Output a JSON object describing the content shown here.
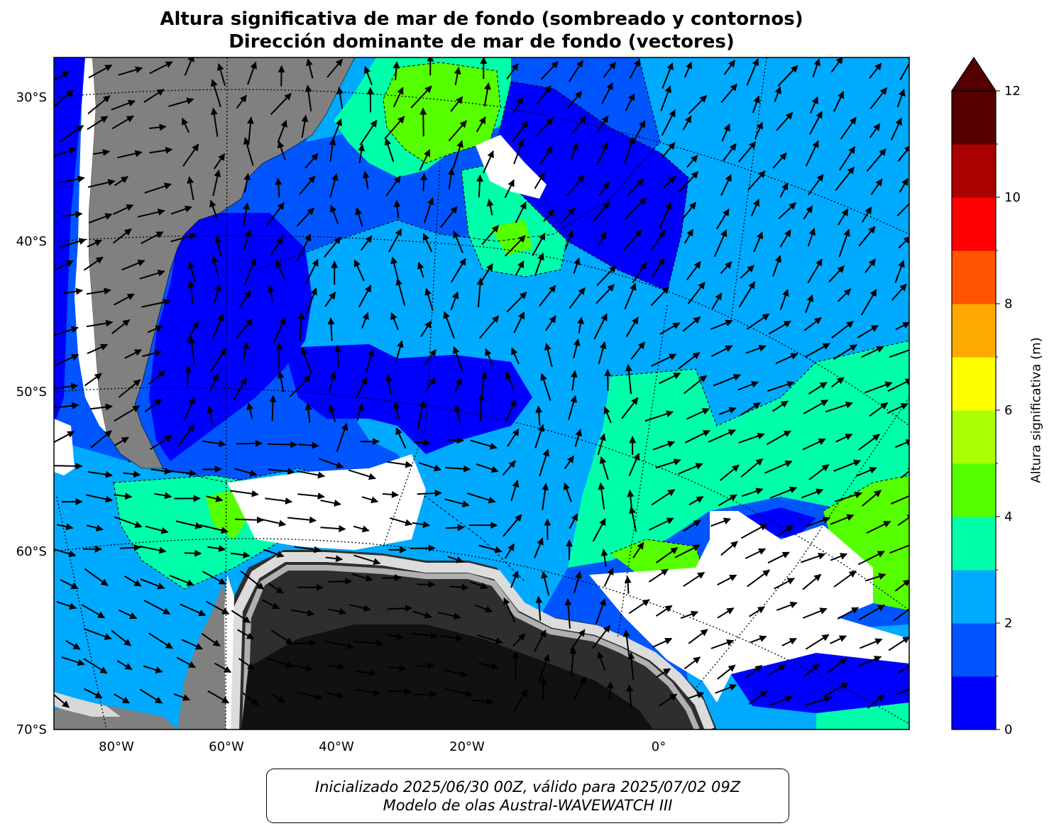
{
  "title_line1": "Altura significativa de mar de fondo (sombreado y contornos)",
  "title_line2": "Dirección dominante de mar de fondo (vectores)",
  "footer_line1": "Inicializado 2025/06/30 00Z, válido para 2025/07/02 09Z",
  "footer_line2": "Modelo de olas Austral-WAVEWATCH III",
  "lat_labels": [
    "30°S",
    "40°S",
    "50°S",
    "60°S",
    "70°S"
  ],
  "lon_labels": [
    "80°W",
    "60°W",
    "40°W",
    "20°W",
    "0°"
  ],
  "colorbar": {
    "label": "Altura significativa (m)",
    "tick_labels": [
      "0",
      "2",
      "4",
      "6",
      "8",
      "10",
      "12"
    ],
    "levels": [
      0,
      1,
      2,
      3,
      4,
      5,
      6,
      7,
      8,
      9,
      10,
      11,
      12
    ],
    "colors": [
      "#0000ff",
      "#0055ff",
      "#00aaff",
      "#00ffaa",
      "#55ff00",
      "#aaff00",
      "#ffff00",
      "#ffaa00",
      "#ff5500",
      "#ff0000",
      "#aa0000",
      "#550000"
    ],
    "extend_color": "#550000",
    "land_color": "#808080",
    "ice_color": "#ffffff"
  }
}
